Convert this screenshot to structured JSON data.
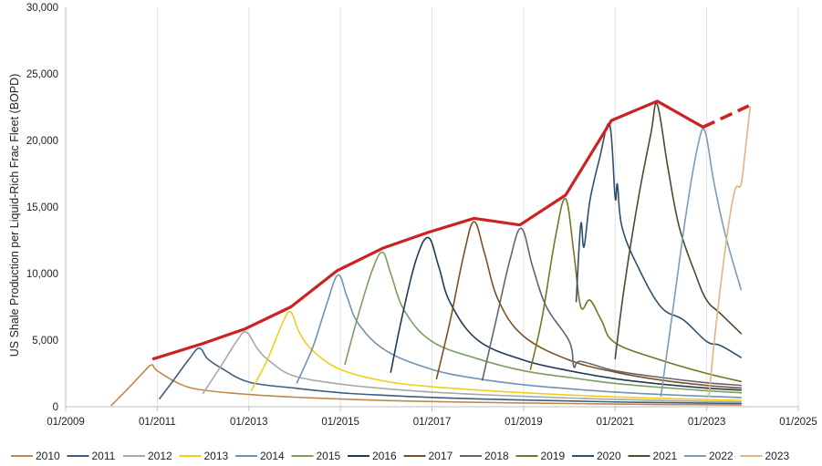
{
  "chart_data": {
    "type": "line",
    "title": "",
    "xlabel": "",
    "ylabel": "US Shale Production per Liquid-Rich Frac Fleet (BOPD)",
    "x_unit": "year",
    "xlim": [
      2009.0,
      2025.0
    ],
    "ylim": [
      0,
      30000
    ],
    "x_ticks": [
      {
        "x": 2009,
        "label": "01/2009"
      },
      {
        "x": 2011,
        "label": "01/2011"
      },
      {
        "x": 2013,
        "label": "01/2013"
      },
      {
        "x": 2015,
        "label": "01/2015"
      },
      {
        "x": 2017,
        "label": "01/2017"
      },
      {
        "x": 2019,
        "label": "01/2019"
      },
      {
        "x": 2021,
        "label": "01/2021"
      },
      {
        "x": 2023,
        "label": "01/2023"
      },
      {
        "x": 2025,
        "label": "01/2025"
      }
    ],
    "y_ticks": [
      {
        "y": 0,
        "label": "0"
      },
      {
        "y": 5000,
        "label": "5,000"
      },
      {
        "y": 10000,
        "label": "10,000"
      },
      {
        "y": 15000,
        "label": "15,000"
      },
      {
        "y": 20000,
        "label": "20,000"
      },
      {
        "y": 25000,
        "label": "25,000"
      },
      {
        "y": 30000,
        "label": "30,000"
      }
    ],
    "grid": {
      "vertical": true,
      "horizontal": false,
      "color": "#e3e3e3"
    },
    "legend": {
      "position": "bottom"
    },
    "envelope": {
      "color": "#cc2222",
      "points": [
        [
          2010.92,
          3600
        ],
        [
          2012.0,
          4750
        ],
        [
          2012.92,
          5850
        ],
        [
          2013.92,
          7500
        ],
        [
          2014.92,
          10200
        ],
        [
          2015.92,
          11900
        ],
        [
          2016.92,
          13100
        ],
        [
          2017.92,
          14150
        ],
        [
          2018.92,
          13650
        ],
        [
          2019.92,
          15900
        ],
        [
          2020.92,
          21500
        ],
        [
          2021.92,
          22950
        ],
        [
          2022.92,
          21000
        ]
      ],
      "dashed": [
        [
          2022.92,
          21000
        ],
        [
          2023.92,
          22600
        ]
      ]
    },
    "series": [
      {
        "name": "2010",
        "color": "#c0894b",
        "points": [
          [
            2010.0,
            100
          ],
          [
            2010.4,
            1500
          ],
          [
            2010.7,
            2600
          ],
          [
            2010.88,
            3150
          ],
          [
            2011.0,
            2700
          ],
          [
            2011.5,
            1700
          ],
          [
            2012.0,
            1250
          ],
          [
            2013.0,
            920
          ],
          [
            2014.0,
            720
          ],
          [
            2015.0,
            580
          ],
          [
            2016.0,
            470
          ],
          [
            2017.0,
            390
          ],
          [
            2018.0,
            330
          ],
          [
            2019.0,
            280
          ],
          [
            2020.0,
            240
          ],
          [
            2021.0,
            200
          ],
          [
            2022.0,
            170
          ],
          [
            2023.0,
            150
          ],
          [
            2023.75,
            130
          ]
        ]
      },
      {
        "name": "2011",
        "color": "#3c5f7f",
        "points": [
          [
            2011.05,
            600
          ],
          [
            2011.4,
            2200
          ],
          [
            2011.7,
            3600
          ],
          [
            2011.92,
            4400
          ],
          [
            2012.1,
            3600
          ],
          [
            2012.4,
            2900
          ],
          [
            2013.0,
            1850
          ],
          [
            2014.0,
            1400
          ],
          [
            2015.0,
            1050
          ],
          [
            2016.0,
            850
          ],
          [
            2017.0,
            700
          ],
          [
            2018.0,
            590
          ],
          [
            2019.0,
            500
          ],
          [
            2020.0,
            430
          ],
          [
            2021.0,
            360
          ],
          [
            2022.0,
            310
          ],
          [
            2023.0,
            270
          ],
          [
            2023.75,
            240
          ]
        ]
      },
      {
        "name": "2012",
        "color": "#a8a8a8",
        "points": [
          [
            2012.0,
            1000
          ],
          [
            2012.4,
            3100
          ],
          [
            2012.75,
            5000
          ],
          [
            2012.95,
            5600
          ],
          [
            2013.2,
            4300
          ],
          [
            2013.5,
            3300
          ],
          [
            2014.0,
            2300
          ],
          [
            2015.0,
            1700
          ],
          [
            2016.0,
            1350
          ],
          [
            2017.0,
            1100
          ],
          [
            2018.0,
            920
          ],
          [
            2019.0,
            780
          ],
          [
            2020.0,
            650
          ],
          [
            2021.0,
            550
          ],
          [
            2022.0,
            470
          ],
          [
            2023.0,
            400
          ],
          [
            2023.75,
            360
          ]
        ]
      },
      {
        "name": "2013",
        "color": "#f0cf1c",
        "points": [
          [
            2013.05,
            1200
          ],
          [
            2013.4,
            3500
          ],
          [
            2013.75,
            6400
          ],
          [
            2013.92,
            7100
          ],
          [
            2014.1,
            5600
          ],
          [
            2014.4,
            4200
          ],
          [
            2015.0,
            2800
          ],
          [
            2016.0,
            1900
          ],
          [
            2017.0,
            1500
          ],
          [
            2018.0,
            1250
          ],
          [
            2019.0,
            1050
          ],
          [
            2020.0,
            880
          ],
          [
            2021.0,
            740
          ],
          [
            2022.0,
            630
          ],
          [
            2023.0,
            540
          ],
          [
            2023.75,
            480
          ]
        ]
      },
      {
        "name": "2014",
        "color": "#6f93b3",
        "points": [
          [
            2014.05,
            1800
          ],
          [
            2014.4,
            4500
          ],
          [
            2014.7,
            7700
          ],
          [
            2014.95,
            9900
          ],
          [
            2015.15,
            8200
          ],
          [
            2015.4,
            6200
          ],
          [
            2016.0,
            4200
          ],
          [
            2017.0,
            2800
          ],
          [
            2018.0,
            2100
          ],
          [
            2019.0,
            1650
          ],
          [
            2020.0,
            1350
          ],
          [
            2021.0,
            1100
          ],
          [
            2022.0,
            920
          ],
          [
            2023.0,
            780
          ],
          [
            2023.75,
            690
          ]
        ]
      },
      {
        "name": "2015",
        "color": "#7c9e5c",
        "points": [
          [
            2015.1,
            3200
          ],
          [
            2015.4,
            7000
          ],
          [
            2015.7,
            10300
          ],
          [
            2015.92,
            11600
          ],
          [
            2016.1,
            10000
          ],
          [
            2016.4,
            7200
          ],
          [
            2017.0,
            4900
          ],
          [
            2018.0,
            3600
          ],
          [
            2019.0,
            2700
          ],
          [
            2020.0,
            2200
          ],
          [
            2021.0,
            1750
          ],
          [
            2022.0,
            1450
          ],
          [
            2023.0,
            1200
          ],
          [
            2023.75,
            1050
          ]
        ]
      },
      {
        "name": "2016",
        "color": "#1f3a55",
        "points": [
          [
            2016.1,
            2600
          ],
          [
            2016.35,
            6800
          ],
          [
            2016.65,
            11000
          ],
          [
            2016.92,
            12700
          ],
          [
            2017.15,
            10500
          ],
          [
            2017.4,
            7800
          ],
          [
            2018.0,
            5000
          ],
          [
            2019.0,
            3500
          ],
          [
            2020.0,
            2700
          ],
          [
            2021.0,
            2100
          ],
          [
            2022.0,
            1700
          ],
          [
            2023.0,
            1400
          ],
          [
            2023.75,
            1250
          ]
        ]
      },
      {
        "name": "2017",
        "color": "#7b5123",
        "points": [
          [
            2017.1,
            2100
          ],
          [
            2017.4,
            6500
          ],
          [
            2017.7,
            11500
          ],
          [
            2017.92,
            13900
          ],
          [
            2018.15,
            11500
          ],
          [
            2018.45,
            8000
          ],
          [
            2019.0,
            5300
          ],
          [
            2020.0,
            3500
          ],
          [
            2021.0,
            2600
          ],
          [
            2022.0,
            2000
          ],
          [
            2023.0,
            1600
          ],
          [
            2023.75,
            1400
          ]
        ]
      },
      {
        "name": "2018",
        "color": "#5f6670",
        "points": [
          [
            2018.1,
            2000
          ],
          [
            2018.4,
            6500
          ],
          [
            2018.7,
            11000
          ],
          [
            2018.95,
            13400
          ],
          [
            2019.2,
            10500
          ],
          [
            2019.5,
            7500
          ],
          [
            2020.0,
            4900
          ],
          [
            2020.1,
            3000
          ],
          [
            2020.25,
            3400
          ],
          [
            2021.0,
            2700
          ],
          [
            2022.0,
            2200
          ],
          [
            2023.0,
            1800
          ],
          [
            2023.75,
            1600
          ]
        ]
      },
      {
        "name": "2019",
        "color": "#757525",
        "points": [
          [
            2019.15,
            2800
          ],
          [
            2019.4,
            6600
          ],
          [
            2019.7,
            12800
          ],
          [
            2019.92,
            15600
          ],
          [
            2020.1,
            11500
          ],
          [
            2020.25,
            7500
          ],
          [
            2020.45,
            8000
          ],
          [
            2020.7,
            6500
          ],
          [
            2021.0,
            4800
          ],
          [
            2022.0,
            3500
          ],
          [
            2023.0,
            2500
          ],
          [
            2023.75,
            1900
          ]
        ]
      },
      {
        "name": "2020",
        "color": "#2e506e",
        "points": [
          [
            2020.15,
            7900
          ],
          [
            2020.25,
            13700
          ],
          [
            2020.32,
            12000
          ],
          [
            2020.45,
            15500
          ],
          [
            2020.65,
            18500
          ],
          [
            2020.88,
            21200
          ],
          [
            2021.0,
            15700
          ],
          [
            2021.05,
            16700
          ],
          [
            2021.15,
            13500
          ],
          [
            2021.5,
            10500
          ],
          [
            2022.0,
            7500
          ],
          [
            2022.5,
            6500
          ],
          [
            2023.0,
            4900
          ],
          [
            2023.3,
            4600
          ],
          [
            2023.75,
            3700
          ]
        ]
      },
      {
        "name": "2021",
        "color": "#4a4a30",
        "points": [
          [
            2021.0,
            3600
          ],
          [
            2021.2,
            9000
          ],
          [
            2021.5,
            15500
          ],
          [
            2021.78,
            20500
          ],
          [
            2021.92,
            22700
          ],
          [
            2022.15,
            18000
          ],
          [
            2022.4,
            13500
          ],
          [
            2022.75,
            10000
          ],
          [
            2023.0,
            8000
          ],
          [
            2023.3,
            7000
          ],
          [
            2023.75,
            5500
          ]
        ]
      },
      {
        "name": "2022",
        "color": "#7e9bb8",
        "points": [
          [
            2022.0,
            800
          ],
          [
            2022.25,
            7000
          ],
          [
            2022.55,
            14500
          ],
          [
            2022.8,
            19500
          ],
          [
            2022.96,
            20700
          ],
          [
            2023.15,
            17000
          ],
          [
            2023.4,
            13000
          ],
          [
            2023.75,
            8800
          ]
        ]
      },
      {
        "name": "2023",
        "color": "#ddb67f",
        "points": [
          [
            2023.05,
            800
          ],
          [
            2023.2,
            6000
          ],
          [
            2023.45,
            13000
          ],
          [
            2023.62,
            16300
          ],
          [
            2023.75,
            16700
          ],
          [
            2023.85,
            19500
          ],
          [
            2023.95,
            22500
          ]
        ]
      }
    ]
  }
}
